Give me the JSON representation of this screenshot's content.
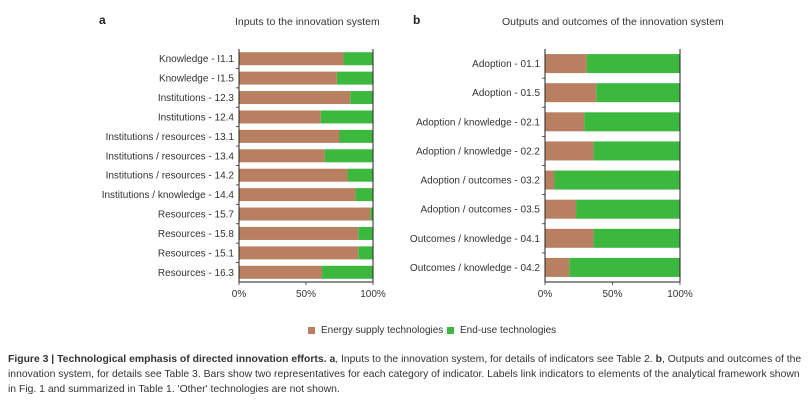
{
  "chart_data": [
    {
      "type": "bar",
      "orientation": "horizontal",
      "stacked": true,
      "panel_label": "a",
      "title": "Inputs to the innovation system",
      "categories": [
        "Knowledge - I1.1",
        "Knowledge - I1.5",
        "Institutions - 12.3",
        "Institutions - 12.4",
        "Institutions / resources - 13.1",
        "Institutions / resources - 13.4",
        "Institutions / resources - 14.2",
        "Institutions / knowledge - 14.4",
        "Resources - 15.7",
        "Resources - 15.8",
        "Resources - 15.1",
        "Resources - 16.3"
      ],
      "series": [
        {
          "name": "Energy supply technologies",
          "values": [
            78,
            73,
            83,
            61,
            75,
            64,
            81,
            87,
            98,
            89,
            89,
            62
          ]
        },
        {
          "name": "End-use technologies",
          "values": [
            22,
            27,
            17,
            39,
            25,
            36,
            19,
            13,
            2,
            11,
            11,
            38
          ]
        }
      ],
      "xlim": [
        0,
        100
      ],
      "xticks": [
        "0%",
        "50%",
        "100%"
      ]
    },
    {
      "type": "bar",
      "orientation": "horizontal",
      "stacked": true,
      "panel_label": "b",
      "title": "Outputs and outcomes of the innovation system",
      "categories": [
        "Adoption - 01.1",
        "Adoption - 01.5",
        "Adoption / knowledge - 02.1",
        "Adoption / knowledge - 02.2",
        "Adoption / outcomes - 03.2",
        "Adoption / outcomes - 03.5",
        "Outcomes / knowledge - 04.1",
        "Outcomes / knowledge - 04.2"
      ],
      "series": [
        {
          "name": "Energy supply technologies",
          "values": [
            31,
            38,
            29,
            36,
            7,
            23,
            36,
            18
          ]
        },
        {
          "name": "End-use technologies",
          "values": [
            69,
            62,
            71,
            64,
            93,
            77,
            64,
            82
          ]
        }
      ],
      "xlim": [
        0,
        100
      ],
      "xticks": [
        "0%",
        "50%",
        "100%"
      ]
    }
  ],
  "legend": {
    "items": [
      {
        "label": "Energy supply technologies",
        "color": "#b88060"
      },
      {
        "label": "End-use technologies",
        "color": "#3cb83f"
      }
    ],
    "placement": "bottom"
  },
  "caption": {
    "fig_label": "Figure 3 | ",
    "fig_title": "Technological emphasis of directed innovation efforts.",
    "a": "a",
    "text_a": ", Inputs to the innovation system, for details of indicators see Table 2. ",
    "b": "b",
    "text_b": ", Outputs and outcomes of the innovation system, for details see Table 3. Bars show two representatives for each category of indicator. Labels link indicators to elements of the analytical framework shown in Fig. 1 and summarized in Table 1. 'Other' technologies are not shown."
  }
}
